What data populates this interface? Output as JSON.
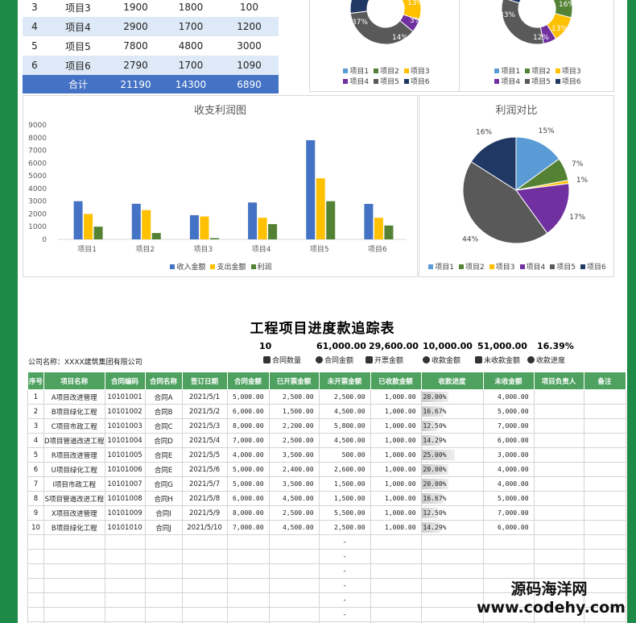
{
  "summary_rows": [
    {
      "no": "3",
      "name": "项目3",
      "income": "1900",
      "expense": "1800",
      "profit": "100"
    },
    {
      "no": "4",
      "name": "项目4",
      "income": "2900",
      "expense": "1700",
      "profit": "1200"
    },
    {
      "no": "5",
      "name": "项目5",
      "income": "7800",
      "expense": "4800",
      "profit": "3000"
    },
    {
      "no": "6",
      "name": "项目6",
      "income": "2790",
      "expense": "1700",
      "profit": "1090"
    }
  ],
  "summary_total": {
    "label": "合计",
    "income": "21190",
    "expense": "14300",
    "profit": "6890"
  },
  "colors": {
    "blue": "#4472c4",
    "orange": "#ffc000",
    "green": "#548235",
    "purple": "#7030a0",
    "gray": "#595959",
    "navy": "#203864",
    "light_blue": "#5b9bd5",
    "header_green": "#4ea15f"
  },
  "legend_projects": [
    "项目1",
    "项目2",
    "项目3",
    "项目4",
    "项目5",
    "项目6"
  ],
  "chart_data": [
    {
      "type": "pie",
      "variant": "donut",
      "visible_labels": [
        "37%",
        "13%",
        "3%",
        "14%"
      ],
      "categories": [
        "项目1",
        "项目2",
        "项目3",
        "项目4",
        "项目5",
        "项目6"
      ]
    },
    {
      "type": "pie",
      "variant": "donut",
      "visible_labels": [
        "33%",
        "16%",
        "13%",
        "12%"
      ],
      "categories": [
        "项目1",
        "项目2",
        "项目3",
        "项目4",
        "项目5",
        "项目6"
      ]
    },
    {
      "type": "bar",
      "title": "收支利润图",
      "categories": [
        "项目1",
        "项目2",
        "项目3",
        "项目4",
        "项目5",
        "项目6"
      ],
      "series": [
        {
          "name": "收入金额",
          "values": [
            3000,
            2800,
            1900,
            2900,
            7800,
            2790
          ]
        },
        {
          "name": "支出金额",
          "values": [
            2000,
            2300,
            1800,
            1700,
            4800,
            1700
          ]
        },
        {
          "name": "利润",
          "values": [
            1000,
            500,
            100,
            1200,
            3000,
            1090
          ]
        }
      ],
      "yticks": [
        "0",
        "1000",
        "2000",
        "3000",
        "4000",
        "5000",
        "6000",
        "7000",
        "8000",
        "9000"
      ],
      "ylim": [
        0,
        9000
      ],
      "legend": "bottom"
    },
    {
      "type": "pie",
      "title": "利润对比",
      "categories": [
        "项目1",
        "项目2",
        "项目3",
        "项目4",
        "项目5",
        "项目6"
      ],
      "values": [
        15,
        7,
        1,
        17,
        44,
        16
      ],
      "labels": [
        "15%",
        "7%",
        "1%",
        "17%",
        "44%",
        "16%"
      ],
      "legend": "bottom"
    }
  ],
  "tracker": {
    "title": "工程项目进度款追踪表",
    "company": "公司名称：XXXX建筑集团有限公司",
    "kpi_values": [
      "10",
      "61,000.00",
      "29,600.00",
      "10,000.00",
      "51,000.00",
      "16.39%"
    ],
    "kpi_labels": [
      "合同数量",
      "合同金额",
      "开票金额",
      "收款金额",
      "未收款金额",
      "收款进度"
    ],
    "headers": [
      "序号",
      "项目名称",
      "合同编码",
      "合同名称",
      "签订日期",
      "合同金额",
      "已开票金额",
      "未开票金额",
      "已收款金额",
      "收款进度",
      "未收金额",
      "项目负责人",
      "备注"
    ],
    "rows": [
      {
        "no": "1",
        "name": "A项目改进管理",
        "code": "10101001",
        "cname": "合同A",
        "date": "2021/5/1",
        "amount": "5,000.00",
        "billed": "2,500.00",
        "unbilled": "2,500.00",
        "received": "1,000.00",
        "progress": "20.00%",
        "p": 0.2,
        "unreceived": "4,000.00"
      },
      {
        "no": "2",
        "name": "B项目绿化工程",
        "code": "10101002",
        "cname": "合同B",
        "date": "2021/5/2",
        "amount": "6,000.00",
        "billed": "1,500.00",
        "unbilled": "4,500.00",
        "received": "1,000.00",
        "progress": "16.67%",
        "p": 0.1667,
        "unreceived": "5,000.00"
      },
      {
        "no": "3",
        "name": "C项目市政工程",
        "code": "10101003",
        "cname": "合同C",
        "date": "2021/5/3",
        "amount": "8,000.00",
        "billed": "2,200.00",
        "unbilled": "5,800.00",
        "received": "1,000.00",
        "progress": "12.50%",
        "p": 0.125,
        "unreceived": "7,000.00"
      },
      {
        "no": "4",
        "name": "D项目管道改进工程",
        "code": "10101004",
        "cname": "合同D",
        "date": "2021/5/4",
        "amount": "7,000.00",
        "billed": "2,500.00",
        "unbilled": "4,500.00",
        "received": "1,000.00",
        "progress": "14.29%",
        "p": 0.1429,
        "unreceived": "6,000.00"
      },
      {
        "no": "5",
        "name": "R项目改进管理",
        "code": "10101005",
        "cname": "合同E",
        "date": "2021/5/5",
        "amount": "4,000.00",
        "billed": "3,500.00",
        "unbilled": "500.00",
        "received": "1,000.00",
        "progress": "25.00%",
        "p": 0.25,
        "unreceived": "3,000.00"
      },
      {
        "no": "6",
        "name": "U项目绿化工程",
        "code": "10101006",
        "cname": "合同E",
        "date": "2021/5/6",
        "amount": "5,000.00",
        "billed": "2,400.00",
        "unbilled": "2,600.00",
        "received": "1,000.00",
        "progress": "20.00%",
        "p": 0.2,
        "unreceived": "4,000.00"
      },
      {
        "no": "7",
        "name": "I项目市政工程",
        "code": "10101007",
        "cname": "合同G",
        "date": "2021/5/7",
        "amount": "5,000.00",
        "billed": "3,500.00",
        "unbilled": "1,500.00",
        "received": "1,000.00",
        "progress": "20.00%",
        "p": 0.2,
        "unreceived": "4,000.00"
      },
      {
        "no": "8",
        "name": "S项目管道改进工程",
        "code": "10101008",
        "cname": "合同H",
        "date": "2021/5/8",
        "amount": "6,000.00",
        "billed": "4,500.00",
        "unbilled": "1,500.00",
        "received": "1,000.00",
        "progress": "16.67%",
        "p": 0.1667,
        "unreceived": "5,000.00"
      },
      {
        "no": "9",
        "name": "X项目改进管理",
        "code": "10101009",
        "cname": "合同I",
        "date": "2021/5/9",
        "amount": "8,000.00",
        "billed": "2,500.00",
        "unbilled": "5,500.00",
        "received": "1,000.00",
        "progress": "12.50%",
        "p": 0.125,
        "unreceived": "7,000.00"
      },
      {
        "no": "10",
        "name": "B项目绿化工程",
        "code": "10101010",
        "cname": "合同J",
        "date": "2021/5/10",
        "amount": "7,000.00",
        "billed": "4,500.00",
        "unbilled": "2,500.00",
        "received": "1,000.00",
        "progress": "14.29%",
        "p": 0.1429,
        "unreceived": "6,000.00"
      }
    ],
    "empty_dash": "-"
  },
  "watermark": {
    "line1": "源码海洋网",
    "line2": "www.codehy.com"
  }
}
